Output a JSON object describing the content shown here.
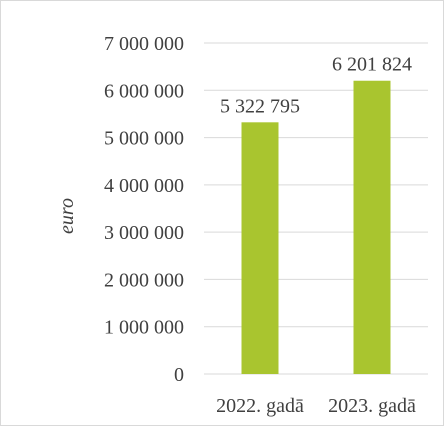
{
  "chart_data": {
    "type": "bar",
    "title": "",
    "xlabel": "",
    "ylabel": "euro",
    "categories": [
      "2022. gadā",
      "2023. gadā"
    ],
    "values": [
      5322795,
      6201824
    ],
    "value_labels": [
      "5 322 795",
      "6 201 824"
    ],
    "ylim": [
      0,
      7000000
    ],
    "yticks": [
      0,
      1000000,
      2000000,
      3000000,
      4000000,
      5000000,
      6000000,
      7000000
    ],
    "ytick_labels": [
      "0",
      "1 000 000",
      "2 000 000",
      "3 000 000",
      "4 000 000",
      "5 000 000",
      "6 000 000",
      "7 000 000"
    ],
    "grid": true,
    "legend": "none",
    "colors": {
      "bar": "#a9c52f",
      "grid": "#d9d9d9",
      "text": "#404040"
    }
  }
}
